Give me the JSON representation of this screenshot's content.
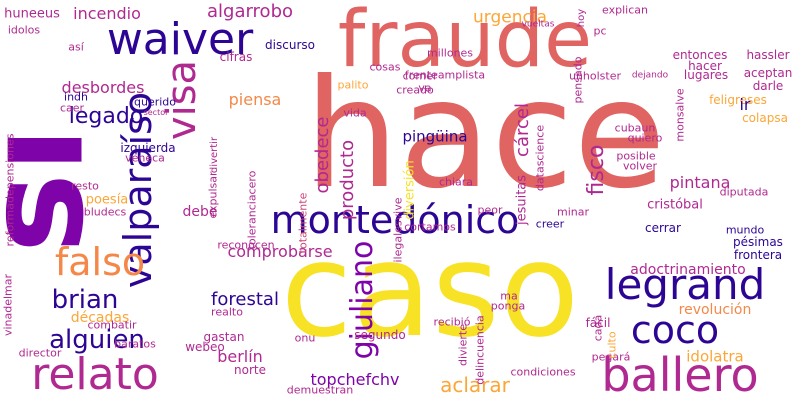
{
  "words": [
    "si",
    "hace",
    "caso",
    "fraude",
    "valparaíso",
    "waiver",
    "montedónico",
    "legrand",
    "ballero",
    "relato",
    "coco",
    "falso",
    "visa",
    "brian",
    "alguien",
    "giuliano",
    "legado",
    "algarrobo",
    "urgencia",
    "incendio",
    "desbordes",
    "piensa",
    "pingüina",
    "adoctrinamiento",
    "revolución",
    "forestal",
    "comprobarse",
    "berlín",
    "topchefchv",
    "aclarar",
    "décadas",
    "idolatra",
    "pintana",
    "fisco",
    "cárcel",
    "obedece",
    "producto",
    "diversión",
    "cristóbal",
    "jesuitas",
    "frenteamplista",
    "unholster",
    "hassler",
    "entonces",
    "lugares",
    "feligreses",
    "colapsa",
    "aceptan",
    "darle",
    "ir",
    "explican",
    "vueltas",
    "millones",
    "discurso",
    "cifras",
    "cosas",
    "querido",
    "izquierda",
    "veneca",
    "poesía",
    "bludecs",
    "expulsar",
    "debe",
    "reconocen",
    "combatir",
    "baratos",
    "director",
    "webeo",
    "norte",
    "gastan",
    "realto",
    "onu",
    "ma",
    "ponga",
    "fácil",
    "segundo",
    "recibió",
    "divierte",
    "delincuencia",
    "condiciones",
    "demuestran",
    "pegará",
    "culto",
    "cada",
    "creer",
    "minar",
    "frontera",
    "mundo",
    "cerrar",
    "pésimas",
    "chiara",
    "posible",
    "volver",
    "diputada",
    "quiero",
    "cubaun",
    "hacer",
    "dejando",
    "pensado",
    "creado",
    "palito",
    "comer",
    "va",
    "vida",
    "resto",
    "indh",
    "caer",
    "sector",
    "datascience",
    "ilegalesvive",
    "cortamos",
    "peor",
    "totalmente",
    "toleranciacero",
    "divertir",
    "reformadepensiones",
    "vinadelmar",
    "huneeus",
    "idolos",
    "así",
    "hoy",
    "pc",
    "monsalve"
  ],
  "theme": {
    "background": "#ffffff"
  }
}
